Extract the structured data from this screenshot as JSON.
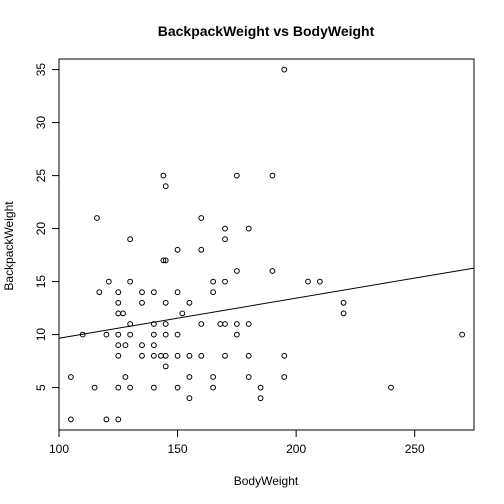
{
  "chart_data": {
    "type": "scatter",
    "title": "BackpackWeight vs BodyWeight",
    "xlabel": "BodyWeight",
    "ylabel": "BackpackWeight",
    "xlim": [
      100,
      275
    ],
    "ylim": [
      1,
      36
    ],
    "xticks": [
      100,
      150,
      200,
      250
    ],
    "yticks": [
      5,
      10,
      15,
      20,
      25,
      30,
      35
    ],
    "grid": false,
    "regression_line": {
      "intercept": 5.88,
      "slope": 0.0378
    },
    "points": [
      [
        105,
        2
      ],
      [
        105,
        6
      ],
      [
        110,
        10
      ],
      [
        115,
        5
      ],
      [
        116,
        21
      ],
      [
        117,
        14
      ],
      [
        120,
        2
      ],
      [
        120,
        10
      ],
      [
        121,
        15
      ],
      [
        125,
        2
      ],
      [
        125,
        5
      ],
      [
        125,
        8
      ],
      [
        125,
        9
      ],
      [
        125,
        10
      ],
      [
        125,
        12
      ],
      [
        125,
        13
      ],
      [
        125,
        14
      ],
      [
        127,
        12
      ],
      [
        128,
        6
      ],
      [
        128,
        9
      ],
      [
        130,
        5
      ],
      [
        130,
        10
      ],
      [
        130,
        11
      ],
      [
        130,
        15
      ],
      [
        130,
        19
      ],
      [
        135,
        8
      ],
      [
        135,
        9
      ],
      [
        135,
        13
      ],
      [
        135,
        14
      ],
      [
        140,
        5
      ],
      [
        140,
        8
      ],
      [
        140,
        9
      ],
      [
        140,
        10
      ],
      [
        140,
        11
      ],
      [
        140,
        14
      ],
      [
        143,
        8
      ],
      [
        144,
        25
      ],
      [
        144,
        17
      ],
      [
        145,
        7
      ],
      [
        145,
        8
      ],
      [
        145,
        10
      ],
      [
        145,
        11
      ],
      [
        145,
        13
      ],
      [
        145,
        17
      ],
      [
        145,
        24
      ],
      [
        150,
        5
      ],
      [
        150,
        8
      ],
      [
        150,
        10
      ],
      [
        150,
        14
      ],
      [
        150,
        18
      ],
      [
        152,
        12
      ],
      [
        155,
        4
      ],
      [
        155,
        6
      ],
      [
        155,
        8
      ],
      [
        155,
        13
      ],
      [
        160,
        8
      ],
      [
        160,
        11
      ],
      [
        160,
        18
      ],
      [
        160,
        21
      ],
      [
        165,
        5
      ],
      [
        165,
        6
      ],
      [
        165,
        14
      ],
      [
        165,
        15
      ],
      [
        168,
        11
      ],
      [
        170,
        8
      ],
      [
        170,
        11
      ],
      [
        170,
        15
      ],
      [
        170,
        19
      ],
      [
        170,
        20
      ],
      [
        175,
        10
      ],
      [
        175,
        11
      ],
      [
        175,
        16
      ],
      [
        175,
        25
      ],
      [
        180,
        6
      ],
      [
        180,
        8
      ],
      [
        180,
        11
      ],
      [
        180,
        20
      ],
      [
        185,
        4
      ],
      [
        185,
        5
      ],
      [
        190,
        16
      ],
      [
        190,
        25
      ],
      [
        195,
        6
      ],
      [
        195,
        8
      ],
      [
        195,
        35
      ],
      [
        205,
        15
      ],
      [
        210,
        15
      ],
      [
        220,
        12
      ],
      [
        220,
        13
      ],
      [
        240,
        5
      ],
      [
        270,
        10
      ]
    ]
  }
}
